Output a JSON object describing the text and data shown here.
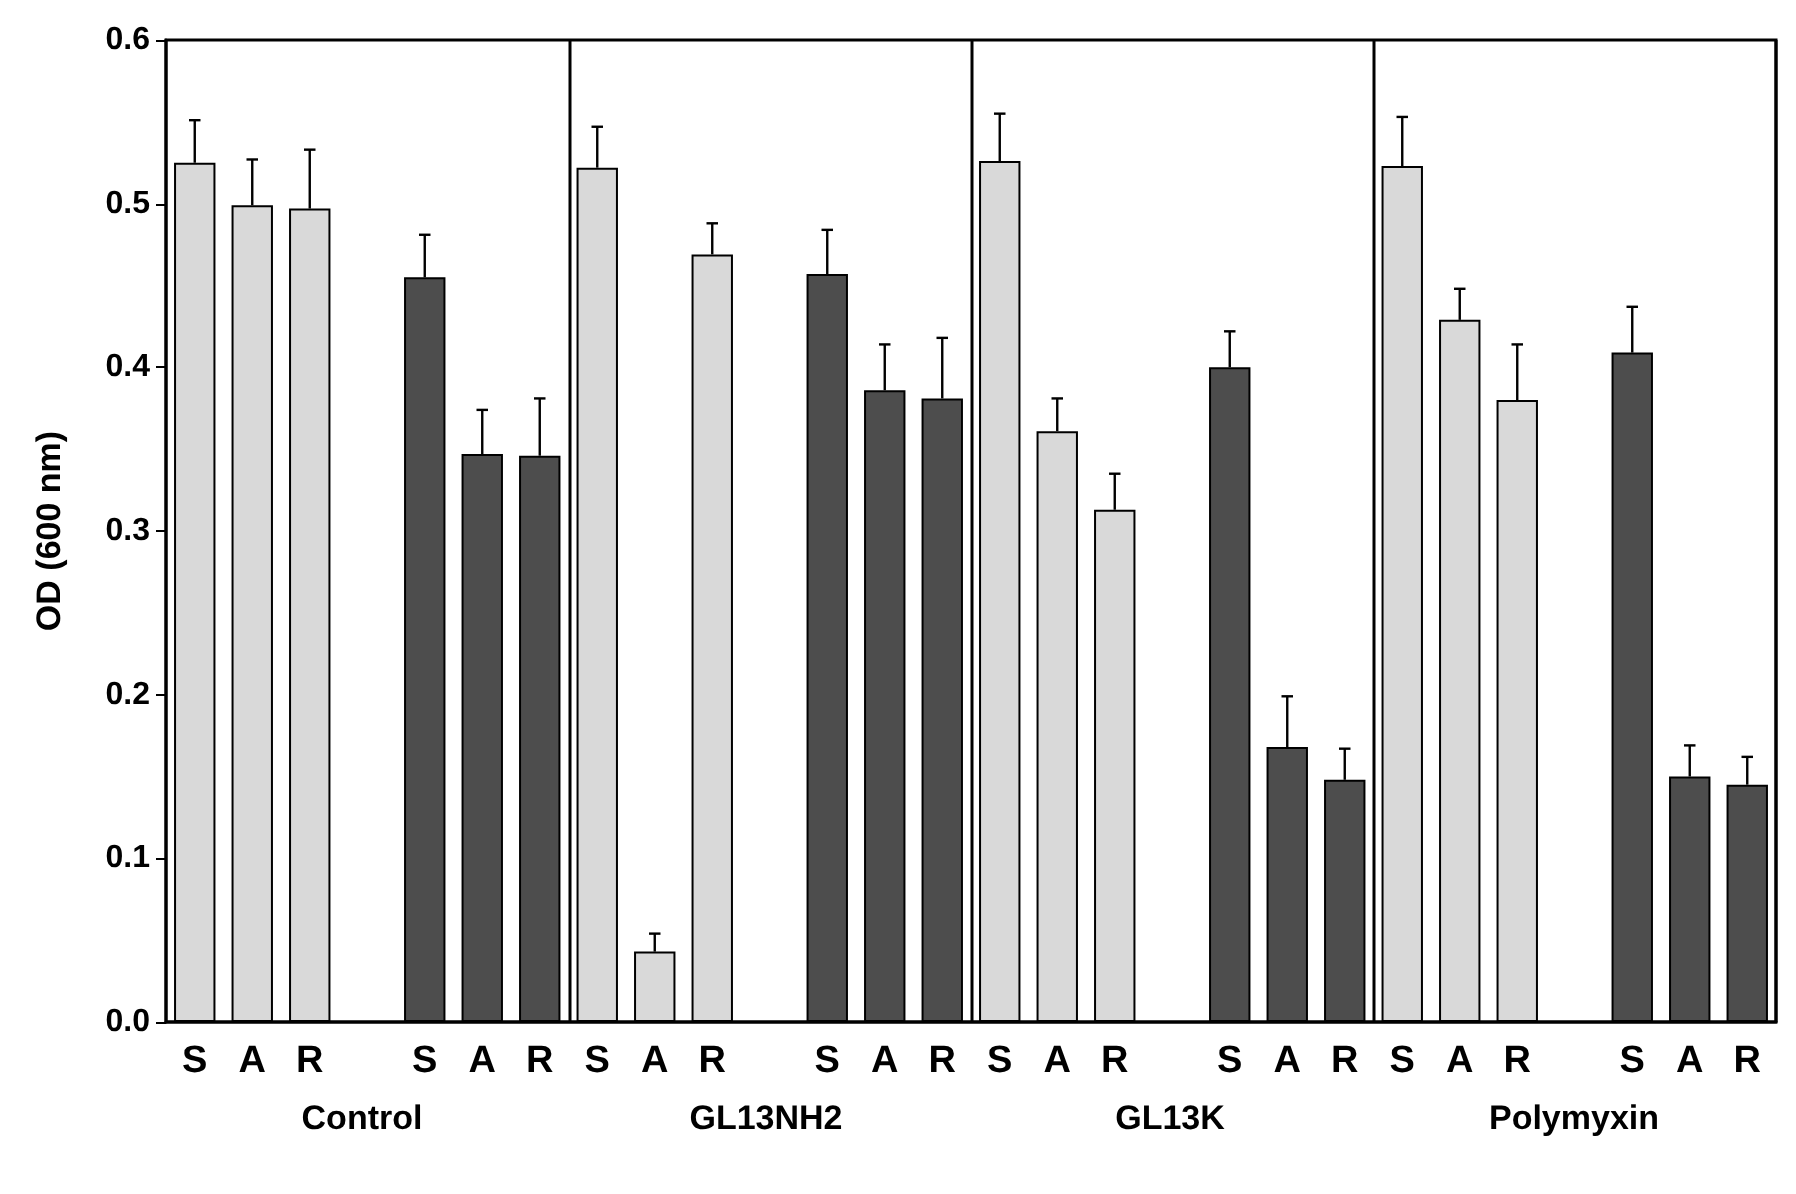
{
  "chart_data": {
    "type": "bar",
    "ylabel": "OD (600 nm)",
    "categories": [
      "S",
      "A",
      "R",
      null,
      "S",
      "A",
      "R",
      "S",
      "A",
      "R",
      null,
      "S",
      "A",
      "R",
      "S",
      "A",
      "R",
      null,
      "S",
      "A",
      "R",
      "S",
      "A",
      "R",
      null,
      "S",
      "A",
      "R"
    ],
    "series": [
      {
        "color": "#d9d9d9",
        "values": [
          0.525,
          0.499,
          0.497,
          null,
          null,
          null,
          null,
          0.522,
          0.043,
          0.469,
          null,
          null,
          null,
          null,
          0.526,
          0.361,
          0.313,
          null,
          null,
          null,
          null,
          0.523,
          0.429,
          0.38,
          null,
          null,
          null,
          null
        ],
        "errors": [
          [
            0.525,
            0.551
          ],
          [
            0.499,
            0.527
          ],
          [
            0.497,
            0.533
          ],
          null,
          null,
          null,
          null,
          [
            0.522,
            0.547
          ],
          [
            0.043,
            0.054
          ],
          [
            0.469,
            0.488
          ],
          null,
          null,
          null,
          null,
          [
            0.526,
            0.555
          ],
          [
            0.361,
            0.381
          ],
          [
            0.313,
            0.335
          ],
          null,
          null,
          null,
          null,
          [
            0.523,
            0.553
          ],
          [
            0.429,
            0.448
          ],
          [
            0.38,
            0.414
          ],
          null,
          null,
          null,
          null
        ]
      },
      {
        "color": "#4d4d4d",
        "values": [
          null,
          null,
          null,
          null,
          0.455,
          0.347,
          0.346,
          null,
          null,
          null,
          null,
          0.457,
          0.386,
          0.381,
          null,
          null,
          null,
          null,
          0.4,
          0.168,
          0.148,
          null,
          null,
          null,
          null,
          0.409,
          0.15,
          0.145
        ],
        "errors": [
          null,
          null,
          null,
          null,
          [
            0.455,
            0.481
          ],
          [
            0.347,
            0.374
          ],
          [
            0.346,
            0.381
          ],
          null,
          null,
          null,
          null,
          [
            0.457,
            0.484
          ],
          [
            0.386,
            0.414
          ],
          [
            0.381,
            0.418
          ],
          null,
          null,
          null,
          null,
          [
            0.4,
            0.422
          ],
          [
            0.168,
            0.199
          ],
          [
            0.148,
            0.167
          ],
          null,
          null,
          null,
          null,
          [
            0.409,
            0.437
          ],
          [
            0.15,
            0.169
          ],
          [
            0.145,
            0.162
          ]
        ]
      }
    ],
    "ylim": [
      0,
      0.6
    ],
    "yticks": [
      {
        "value": 0,
        "label": "0.0"
      },
      {
        "value": 0.1,
        "label": "0.1"
      },
      {
        "value": 0.2,
        "label": "0.2"
      },
      {
        "value": 0.3,
        "label": "0.3"
      },
      {
        "value": 0.4,
        "label": "0.4"
      },
      {
        "value": 0.5,
        "label": "0.5"
      },
      {
        "value": 0.6,
        "label": "0.6"
      }
    ],
    "grid": "x",
    "annotations": [
      "Control",
      "GL13NH2",
      "GL13K",
      "Polymyxin"
    ]
  }
}
